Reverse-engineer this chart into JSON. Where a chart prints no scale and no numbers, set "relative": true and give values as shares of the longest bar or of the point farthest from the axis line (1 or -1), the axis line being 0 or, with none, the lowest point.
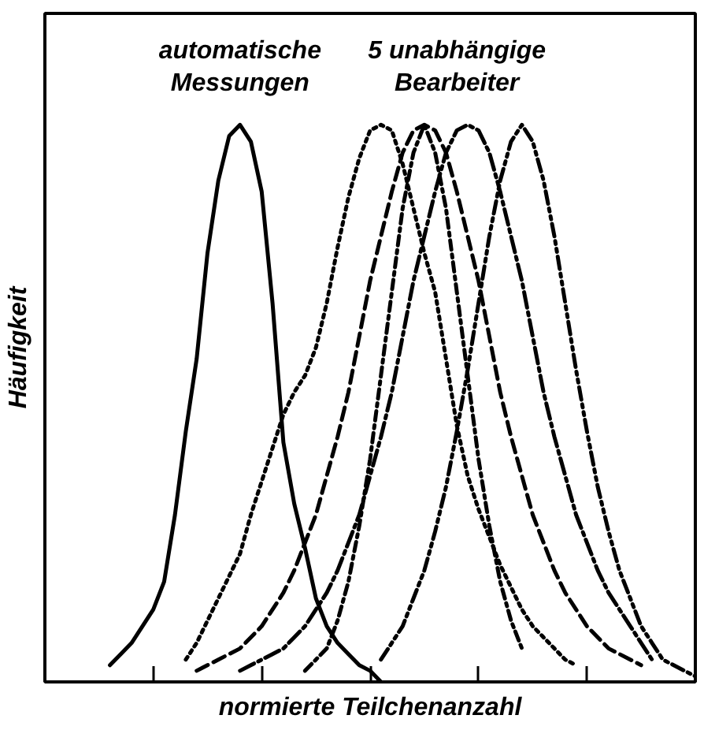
{
  "chart_data": {
    "type": "line",
    "relative": true,
    "xlabel": "normierte Teilchenanzahl",
    "ylabel": "Häufigkeit",
    "grid": false,
    "marker": "none",
    "annotations": [
      "automatische\nMessungen",
      "5 unabhängige\nBearbeiter"
    ],
    "categories": [
      null,
      null,
      null,
      null,
      null,
      null,
      null,
      null,
      null,
      null,
      null,
      null,
      null,
      null,
      null,
      null,
      null,
      null,
      null,
      null,
      null,
      null,
      null,
      null,
      null,
      null,
      null,
      null,
      null,
      null,
      null,
      null,
      null,
      null,
      null,
      null,
      null,
      null,
      null,
      null,
      null,
      null,
      null,
      null,
      null,
      null,
      null,
      null,
      null,
      null,
      null,
      null,
      null,
      null,
      null,
      null,
      null,
      null,
      null,
      null,
      null
    ],
    "series": [
      {
        "color": "#000000",
        "line_style": "solid",
        "values": [
          null,
          null,
          null,
          null,
          null,
          null,
          0.03,
          0.05,
          0.07,
          0.1,
          0.13,
          0.18,
          0.3,
          0.45,
          0.58,
          0.77,
          0.9,
          0.98,
          1.0,
          0.97,
          0.88,
          0.68,
          0.43,
          0.32,
          0.24,
          0.15,
          0.1,
          0.07,
          0.05,
          0.03,
          0.02,
          0,
          null,
          null,
          null,
          null,
          null,
          null,
          null,
          null,
          null,
          null,
          null,
          null,
          null,
          null,
          null,
          null,
          null,
          null,
          null,
          null,
          null,
          null,
          null,
          null,
          null,
          null,
          null,
          null,
          null
        ]
      },
      {
        "color": "#000000",
        "line_style": "dotted",
        "values": [
          null,
          null,
          null,
          null,
          null,
          null,
          null,
          null,
          null,
          null,
          null,
          null,
          null,
          0.04,
          0.07,
          0.11,
          0.15,
          0.19,
          0.23,
          0.3,
          0.36,
          0.42,
          0.48,
          0.52,
          0.55,
          0.6,
          0.68,
          0.78,
          0.87,
          0.94,
          0.99,
          1.0,
          0.99,
          0.93,
          0.85,
          0.77,
          0.7,
          0.58,
          0.46,
          0.37,
          0.31,
          0.26,
          0.21,
          0.17,
          0.13,
          0.1,
          0.08,
          0.06,
          0.04,
          0.03,
          null,
          null,
          null,
          null,
          null,
          null,
          null,
          null,
          null,
          null,
          null
        ]
      },
      {
        "color": "#000000",
        "line_style": "dashed",
        "values": [
          null,
          null,
          null,
          null,
          null,
          null,
          null,
          null,
          null,
          null,
          null,
          null,
          null,
          null,
          0.02,
          0.03,
          0.04,
          0.05,
          0.06,
          0.08,
          0.1,
          0.13,
          0.16,
          0.2,
          0.25,
          0.3,
          0.37,
          0.44,
          0.52,
          0.62,
          0.72,
          0.8,
          0.88,
          0.95,
          0.99,
          1.0,
          0.99,
          0.95,
          0.88,
          0.8,
          0.72,
          0.62,
          0.52,
          0.44,
          0.37,
          0.3,
          0.25,
          0.2,
          0.16,
          0.13,
          0.1,
          0.08,
          0.06,
          0.05,
          0.04,
          0.03,
          null,
          null,
          null,
          null,
          null
        ]
      },
      {
        "color": "#000000",
        "line_style": "dashdot",
        "values": [
          null,
          null,
          null,
          null,
          null,
          null,
          null,
          null,
          null,
          null,
          null,
          null,
          null,
          null,
          null,
          null,
          null,
          null,
          0.02,
          0.03,
          0.04,
          0.05,
          0.06,
          0.08,
          0.1,
          0.13,
          0.16,
          0.2,
          0.25,
          0.3,
          0.37,
          0.44,
          0.52,
          0.62,
          0.72,
          0.8,
          0.88,
          0.95,
          0.99,
          1.0,
          0.99,
          0.95,
          0.88,
          0.8,
          0.72,
          0.62,
          0.52,
          0.44,
          0.37,
          0.3,
          0.25,
          0.2,
          0.16,
          0.13,
          0.1,
          0.07,
          0.04,
          null,
          null,
          null,
          null
        ]
      },
      {
        "color": "#000000",
        "line_style": "dotdash",
        "values": [
          null,
          null,
          null,
          null,
          null,
          null,
          null,
          null,
          null,
          null,
          null,
          null,
          null,
          null,
          null,
          null,
          null,
          null,
          null,
          null,
          null,
          null,
          null,
          null,
          0.02,
          0.04,
          0.06,
          0.11,
          0.18,
          0.28,
          0.4,
          0.55,
          0.7,
          0.85,
          0.95,
          1.0,
          0.95,
          0.85,
          0.7,
          0.55,
          0.4,
          0.28,
          0.18,
          0.11,
          0.06,
          null,
          null,
          null,
          null,
          null,
          null,
          null,
          null,
          null,
          null,
          null,
          null,
          null,
          null,
          null,
          null
        ]
      },
      {
        "color": "#000000",
        "line_style": "dashdotdot",
        "values": [
          null,
          null,
          null,
          null,
          null,
          null,
          null,
          null,
          null,
          null,
          null,
          null,
          null,
          null,
          null,
          null,
          null,
          null,
          null,
          null,
          null,
          null,
          null,
          null,
          null,
          null,
          null,
          null,
          null,
          null,
          null,
          0.04,
          0.07,
          0.1,
          0.15,
          0.2,
          0.27,
          0.35,
          0.45,
          0.56,
          0.68,
          0.8,
          0.9,
          0.97,
          1.0,
          0.97,
          0.9,
          0.8,
          0.68,
          0.56,
          0.45,
          0.35,
          0.27,
          0.2,
          0.15,
          0.1,
          0.07,
          0.04,
          0.03,
          0.02,
          0.01
        ]
      }
    ]
  }
}
